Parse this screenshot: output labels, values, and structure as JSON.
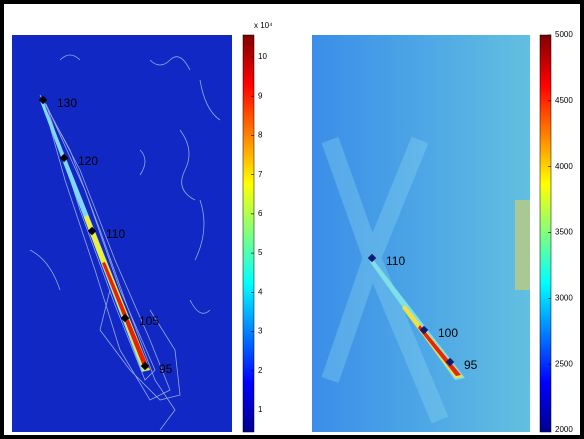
{
  "chart_data": [
    {
      "type": "heatmap",
      "colorbar_label": "x 10⁴",
      "clim": [
        0.44,
        10.56
      ],
      "colorbar_ticks": [
        1,
        2,
        3,
        4,
        5,
        6,
        7,
        8,
        9,
        10
      ],
      "point_labels": [
        "130",
        "120",
        "110",
        "105",
        "95"
      ],
      "marker_color": "#000000"
    },
    {
      "type": "heatmap",
      "clim": [
        1985,
        5000
      ],
      "colorbar_ticks": [
        2000,
        2500,
        3000,
        3500,
        4000,
        4500,
        5000
      ],
      "point_labels": [
        "110",
        "100",
        "95"
      ],
      "marker_color": "#101a6e"
    }
  ]
}
